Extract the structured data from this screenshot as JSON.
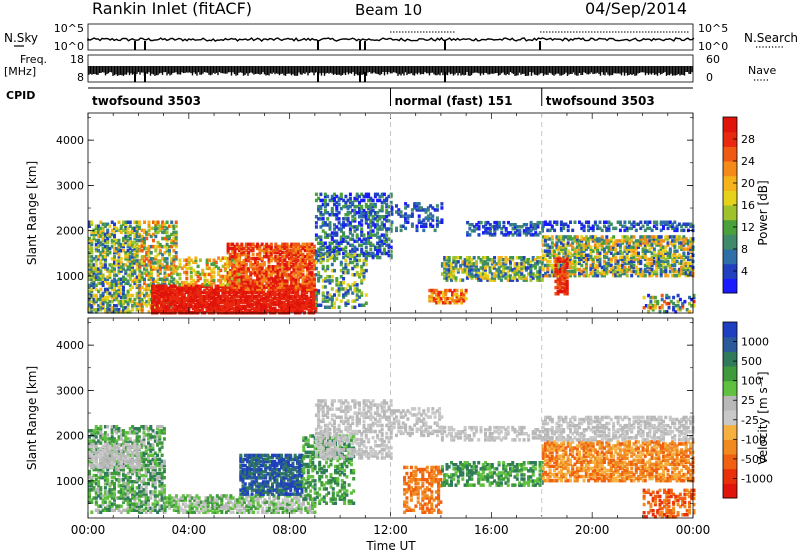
{
  "header": {
    "title": "Rankin Inlet (fitACF)",
    "beam": "Beam 10",
    "date": "04/Sep/2014"
  },
  "top_panels": {
    "nsky_label": "N.Sky",
    "nsearch_label": "N.Search",
    "nsky_ticks": [
      "10^5",
      "10^0"
    ],
    "nsearch_ticks": [
      "10^5",
      "10^0"
    ],
    "freq_label_1": "Freq.",
    "freq_label_2": "[MHz]",
    "freq_ticks": [
      "18",
      "8"
    ],
    "nave_label": "Nave",
    "nave_ticks": [
      "60",
      "0"
    ],
    "cpid_label": "CPID",
    "cpid_segments": [
      {
        "text": "twofsound 3503",
        "start": 0
      },
      {
        "text": "normal (fast) 151",
        "start": 12
      },
      {
        "text": "twofsound 3503",
        "start": 18
      }
    ]
  },
  "chart_data": [
    {
      "type": "heatmap",
      "title": "",
      "xlabel": "Time UT",
      "ylabel": "Slant Range [km]",
      "xlim": [
        0,
        24
      ],
      "ylim": [
        180,
        4600
      ],
      "x_ticks": [
        "00:00",
        "04:00",
        "08:00",
        "12:00",
        "16:00",
        "20:00",
        "00:00"
      ],
      "y_ticks": [
        1000,
        2000,
        3000,
        4000
      ],
      "colorbar": {
        "label": "Power [dB]",
        "range": [
          0,
          32
        ],
        "ticks": [
          4,
          8,
          12,
          16,
          20,
          24,
          28
        ],
        "colors": [
          "#1a1aff",
          "#2040c0",
          "#2f6fa8",
          "#3e8a6a",
          "#4aa03a",
          "#9fc12b",
          "#e6d21a",
          "#f5b21a",
          "#f38a1a",
          "#ee5a14",
          "#e8280f",
          "#e0140a"
        ]
      }
    },
    {
      "type": "heatmap",
      "title": "",
      "xlabel": "Time UT",
      "ylabel": "Slant Range [km]",
      "xlim": [
        0,
        24
      ],
      "ylim": [
        180,
        4600
      ],
      "x_ticks": [
        "00:00",
        "04:00",
        "08:00",
        "12:00",
        "16:00",
        "20:00",
        "00:00"
      ],
      "y_ticks": [
        1000,
        2000,
        3000,
        4000
      ],
      "colorbar": {
        "label": "Velocity [m s⁻¹]",
        "tick_labels": [
          "1000",
          "500",
          "100",
          "25",
          "-25",
          "-100",
          "-500",
          "-1000"
        ],
        "colors": [
          "#1e3fbf",
          "#2a5a9a",
          "#2f7a5a",
          "#3e9a3a",
          "#60c040",
          "#b8b8b8",
          "#c8c8c8",
          "#f5b040",
          "#f08a20",
          "#f06010",
          "#e8300a",
          "#e0140a"
        ]
      }
    }
  ]
}
